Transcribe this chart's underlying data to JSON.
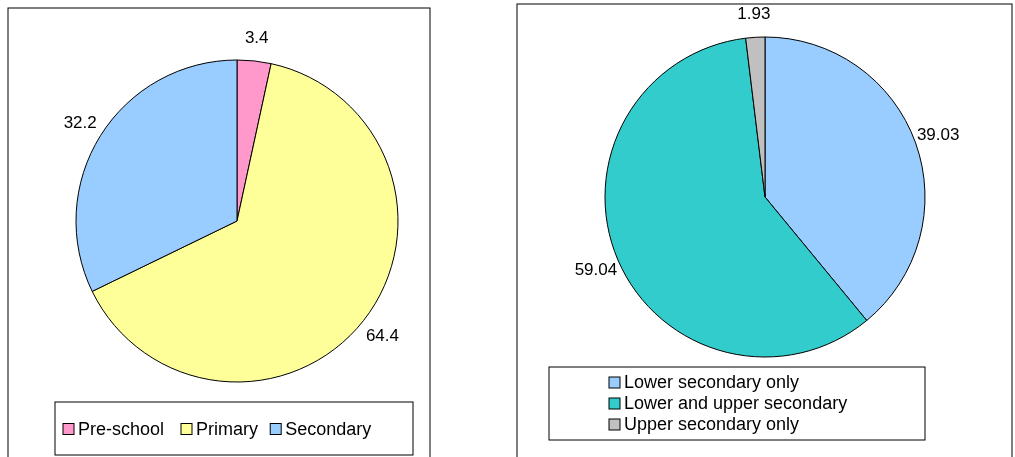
{
  "chart_data": [
    {
      "type": "pie",
      "categories": [
        "Pre-school",
        "Primary",
        "Secondary"
      ],
      "values": [
        3.4,
        64.4,
        32.2
      ],
      "colors": [
        "#ff99cc",
        "#ffff99",
        "#99ccff"
      ],
      "data_labels": true,
      "legend": "bottom"
    },
    {
      "type": "pie",
      "categories": [
        "Lower secondary only",
        "Lower and upper secondary",
        "Upper secondary only"
      ],
      "values": [
        39.03,
        59.04,
        1.93
      ],
      "colors": [
        "#99ccff",
        "#33cccc",
        "#c0c0c0"
      ],
      "data_labels": true,
      "legend": "bottom"
    }
  ]
}
